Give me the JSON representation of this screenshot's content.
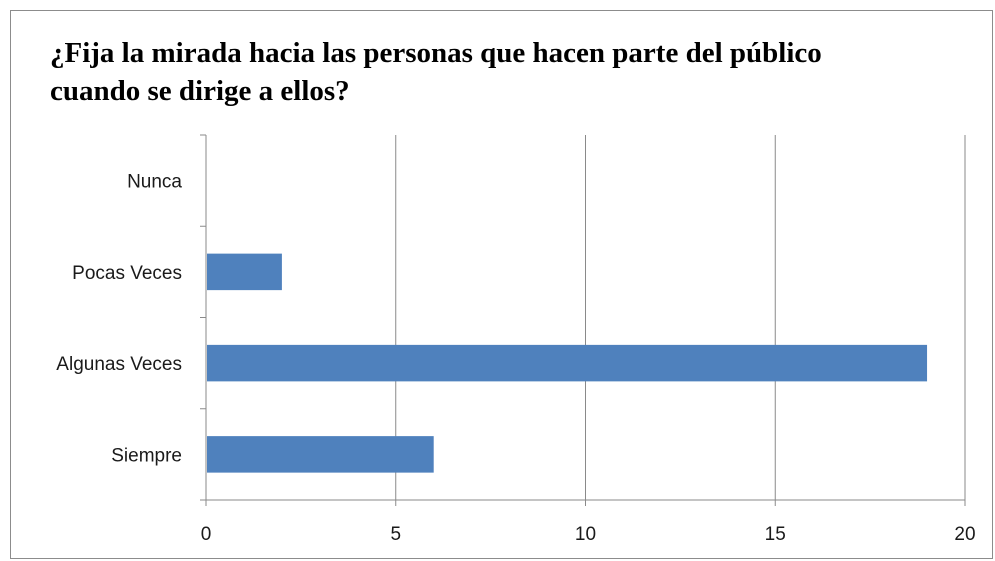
{
  "chart_data": {
    "type": "bar",
    "orientation": "horizontal",
    "title": "¿Fija la mirada hacia las personas que hacen parte del público cuando se dirige a ellos?",
    "categories": [
      "Nunca",
      "Pocas Veces",
      "Algunas Veces",
      "Siempre"
    ],
    "values": [
      0,
      2,
      19,
      6
    ],
    "xlim": [
      0,
      20
    ],
    "xticks": [
      0,
      5,
      10,
      15,
      20
    ],
    "grid": true,
    "legend": "none",
    "bar_color": "#4f81bd"
  }
}
